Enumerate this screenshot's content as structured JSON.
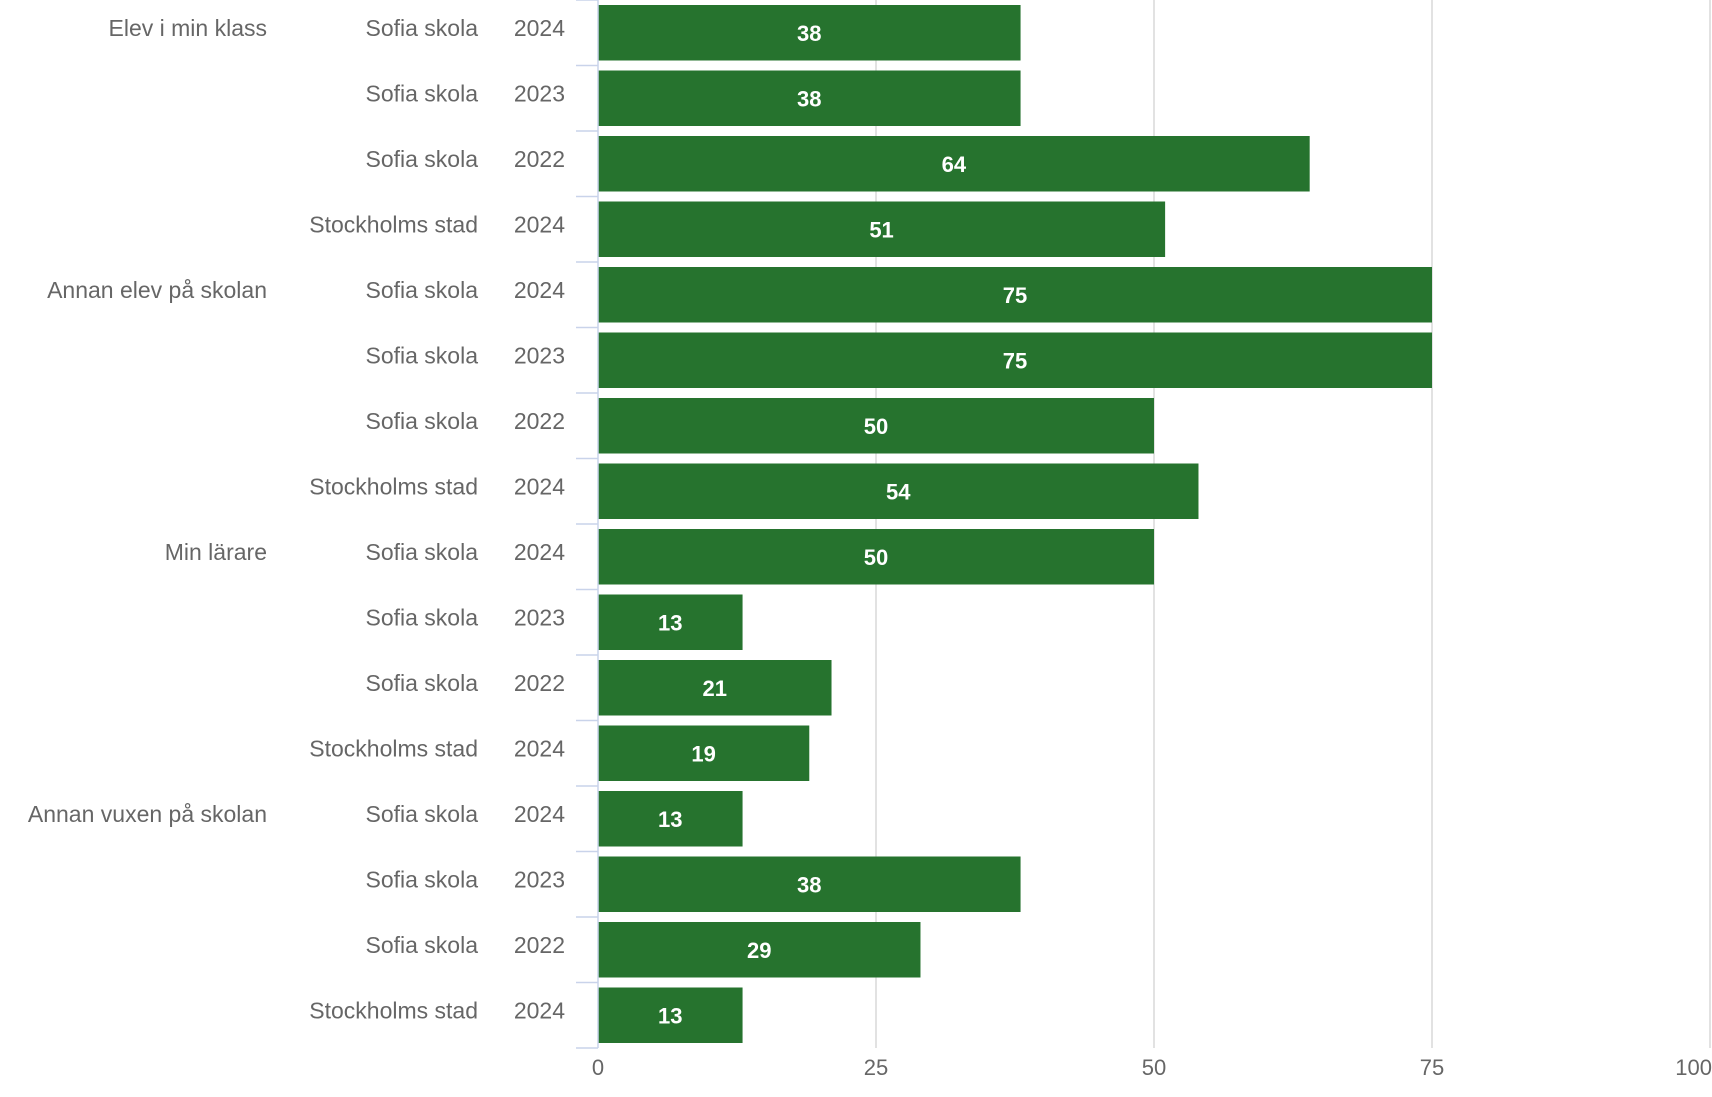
{
  "chart_data": {
    "type": "bar",
    "orientation": "horizontal",
    "bar_color": "#26732e",
    "value_label_color": "#ffffff",
    "axis_label_color": "#666666",
    "grid_color": "#d9d9d9",
    "axis_line_color": "#c9d3ea",
    "xlim": [
      0,
      100
    ],
    "xticks": [
      "0",
      "25",
      "50",
      "75",
      "100"
    ],
    "grid": true,
    "legend": "none",
    "footer_note": "",
    "groups": [
      {
        "label": "Elev i min klass",
        "rows": [
          {
            "org": "Sofia skola",
            "year": "2024",
            "value": 38
          },
          {
            "org": "Sofia skola",
            "year": "2023",
            "value": 38
          },
          {
            "org": "Sofia skola",
            "year": "2022",
            "value": 64
          },
          {
            "org": "Stockholms stad",
            "year": "2024",
            "value": 51
          }
        ]
      },
      {
        "label": "Annan elev på skolan",
        "rows": [
          {
            "org": "Sofia skola",
            "year": "2024",
            "value": 75
          },
          {
            "org": "Sofia skola",
            "year": "2023",
            "value": 75
          },
          {
            "org": "Sofia skola",
            "year": "2022",
            "value": 50
          },
          {
            "org": "Stockholms stad",
            "year": "2024",
            "value": 54
          }
        ]
      },
      {
        "label": "Min lärare",
        "rows": [
          {
            "org": "Sofia skola",
            "year": "2024",
            "value": 50
          },
          {
            "org": "Sofia skola",
            "year": "2023",
            "value": 13
          },
          {
            "org": "Sofia skola",
            "year": "2022",
            "value": 21
          },
          {
            "org": "Stockholms stad",
            "year": "2024",
            "value": 19
          }
        ]
      },
      {
        "label": "Annan vuxen på skolan",
        "rows": [
          {
            "org": "Sofia skola",
            "year": "2024",
            "value": 13
          },
          {
            "org": "Sofia skola",
            "year": "2023",
            "value": 38
          },
          {
            "org": "Sofia skola",
            "year": "2022",
            "value": 29
          },
          {
            "org": "Stockholms stad",
            "year": "2024",
            "value": 13
          }
        ]
      }
    ]
  }
}
